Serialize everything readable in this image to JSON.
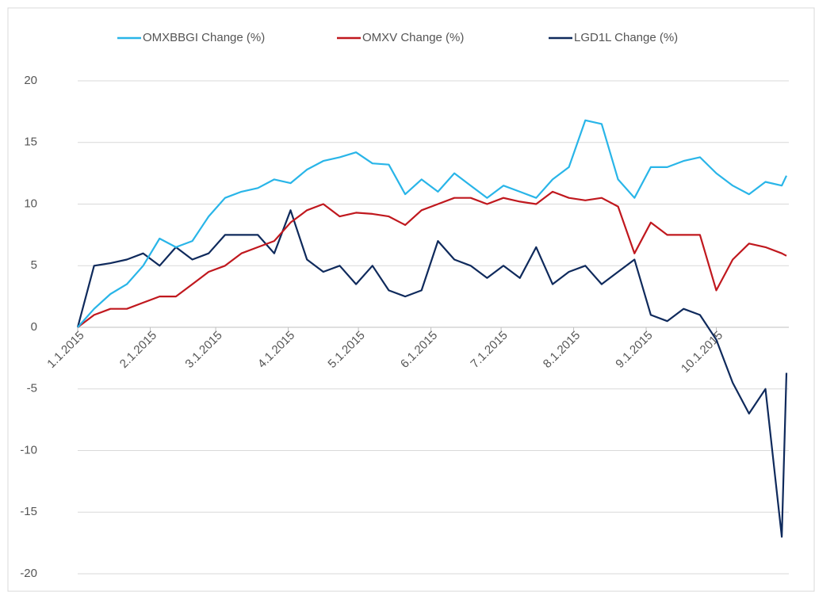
{
  "chart_data": {
    "type": "line",
    "x": [
      "2015-01-01",
      "2015-01-08",
      "2015-01-15",
      "2015-01-22",
      "2015-01-29",
      "2015-02-05",
      "2015-02-12",
      "2015-02-19",
      "2015-02-26",
      "2015-03-05",
      "2015-03-12",
      "2015-03-19",
      "2015-03-26",
      "2015-04-02",
      "2015-04-09",
      "2015-04-16",
      "2015-04-23",
      "2015-04-30",
      "2015-05-07",
      "2015-05-14",
      "2015-05-21",
      "2015-05-28",
      "2015-06-04",
      "2015-06-11",
      "2015-06-18",
      "2015-06-25",
      "2015-07-02",
      "2015-07-09",
      "2015-07-16",
      "2015-07-23",
      "2015-07-30",
      "2015-08-06",
      "2015-08-13",
      "2015-08-20",
      "2015-08-27",
      "2015-09-03",
      "2015-09-10",
      "2015-09-17",
      "2015-09-24",
      "2015-10-01",
      "2015-10-08",
      "2015-10-15",
      "2015-10-22",
      "2015-10-29",
      "2015-10-31"
    ],
    "series": [
      {
        "name": "OMXBBGI Change (%)",
        "color": "#29b5e8",
        "values": [
          0,
          1.5,
          2.7,
          3.5,
          5,
          7.2,
          6.5,
          7,
          9,
          10.5,
          11,
          11.3,
          12,
          11.7,
          12.8,
          13.5,
          13.8,
          14.2,
          13.3,
          13.2,
          10.8,
          12,
          11,
          12.5,
          11.5,
          10.5,
          11.5,
          11,
          10.5,
          12,
          13,
          16.8,
          16.5,
          12,
          10.5,
          13,
          13,
          13.5,
          13.8,
          12.5,
          11.5,
          10.8,
          11.8,
          11.5,
          12.3
        ]
      },
      {
        "name": "OMXV Change (%)",
        "color": "#c0181e",
        "values": [
          0,
          1,
          1.5,
          1.5,
          2,
          2.5,
          2.5,
          3.5,
          4.5,
          5,
          6,
          6.5,
          7,
          8.5,
          9.5,
          10,
          9,
          9.3,
          9.2,
          9,
          8.3,
          9.5,
          10,
          10.5,
          10.5,
          10,
          10.5,
          10.2,
          10,
          11,
          10.5,
          10.3,
          10.5,
          9.8,
          6,
          8.5,
          7.5,
          7.5,
          7.5,
          3,
          5.5,
          6.8,
          6.5,
          6,
          5.8
        ]
      },
      {
        "name": "LGD1L Change (%)",
        "color": "#0f2a5c",
        "values": [
          0,
          5,
          5.2,
          5.5,
          6,
          5,
          6.5,
          5.5,
          6,
          7.5,
          7.5,
          7.5,
          6,
          9.5,
          5.5,
          4.5,
          5,
          3.5,
          5,
          3,
          2.5,
          3,
          7,
          5.5,
          5,
          4,
          5,
          4,
          6.5,
          3.5,
          4.5,
          5,
          3.5,
          4.5,
          5.5,
          1,
          0.5,
          1.5,
          1,
          -1,
          -4.5,
          -7,
          -5,
          -17,
          -3.7
        ]
      }
    ],
    "xlim": [
      "2015-01-01",
      "2015-11-01"
    ],
    "xticks": [
      {
        "value": "2015-01-01",
        "label": "1.1.2015"
      },
      {
        "value": "2015-02-01",
        "label": "2.1.2015"
      },
      {
        "value": "2015-03-01",
        "label": "3.1.2015"
      },
      {
        "value": "2015-04-01",
        "label": "4.1.2015"
      },
      {
        "value": "2015-05-01",
        "label": "5.1.2015"
      },
      {
        "value": "2015-06-01",
        "label": "6.1.2015"
      },
      {
        "value": "2015-07-01",
        "label": "7.1.2015"
      },
      {
        "value": "2015-08-01",
        "label": "8.1.2015"
      },
      {
        "value": "2015-09-01",
        "label": "9.1.2015"
      },
      {
        "value": "2015-10-01",
        "label": "10.1.2015"
      }
    ],
    "ylim": [
      -20,
      20
    ],
    "yticks": [
      -20,
      -15,
      -10,
      -5,
      0,
      5,
      10,
      15,
      20
    ],
    "grid": true,
    "legend": "top"
  }
}
